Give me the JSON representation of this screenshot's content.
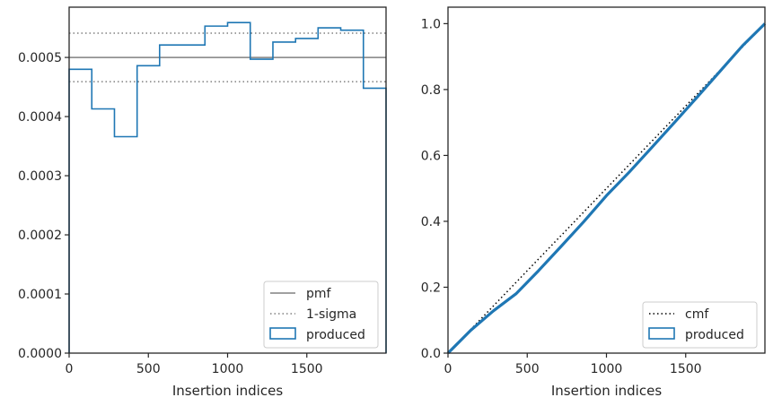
{
  "colors": {
    "produced": "#1f77b4",
    "pmf": "#808080",
    "sigma": "#808080",
    "cmf": "#000000",
    "axes": "#262626",
    "legend_border": "#cccccc"
  },
  "chart_data": [
    {
      "type": "step",
      "xlabel": "Insertion indices",
      "ylabel": "",
      "xlim": [
        0,
        2000
      ],
      "ylim": [
        0,
        0.000585
      ],
      "xticks": [
        0,
        500,
        1000,
        1500
      ],
      "xtick_labels": [
        "0",
        "500",
        "1000",
        "1500"
      ],
      "yticks": [
        0,
        0.0001,
        0.0002,
        0.0003,
        0.0004,
        0.0005
      ],
      "ytick_labels": [
        "0.0000",
        "0.0001",
        "0.0002",
        "0.0003",
        "0.0004",
        "0.0005"
      ],
      "legend_placement": "lower-right",
      "pmf": {
        "label": "pmf",
        "value": 0.0005
      },
      "sigma": {
        "label": "1-sigma",
        "upper": 0.000541,
        "lower": 0.000459
      },
      "produced": {
        "label": "produced",
        "bin_edges": [
          0,
          143,
          286,
          429,
          571,
          714,
          857,
          1000,
          1143,
          1286,
          1429,
          1571,
          1714,
          1857,
          2000
        ],
        "values": [
          0.00048,
          0.000413,
          0.000366,
          0.000486,
          0.000521,
          0.000521,
          0.000553,
          0.000559,
          0.000497,
          0.000526,
          0.000532,
          0.00055,
          0.000546,
          0.000448
        ]
      }
    },
    {
      "type": "line",
      "xlabel": "Insertion indices",
      "ylabel": "",
      "xlim": [
        0,
        2000
      ],
      "ylim": [
        0,
        1.05
      ],
      "xticks": [
        0,
        500,
        1000,
        1500
      ],
      "xtick_labels": [
        "0",
        "500",
        "1000",
        "1500"
      ],
      "yticks": [
        0,
        0.2,
        0.4,
        0.6,
        0.8,
        1.0
      ],
      "ytick_labels": [
        "0.0",
        "0.2",
        "0.4",
        "0.6",
        "0.8",
        "1.0"
      ],
      "legend_placement": "lower-right",
      "cmf": {
        "label": "cmf",
        "x": [
          0,
          2000
        ],
        "y": [
          0,
          1.0
        ]
      },
      "produced": {
        "label": "produced",
        "x": [
          0,
          143,
          286,
          429,
          571,
          714,
          857,
          1000,
          1143,
          1286,
          1429,
          1571,
          1714,
          1857,
          2000
        ],
        "y": [
          0,
          0.069,
          0.128,
          0.18,
          0.25,
          0.324,
          0.399,
          0.478,
          0.549,
          0.624,
          0.7,
          0.776,
          0.854,
          0.932,
          1.0
        ]
      }
    }
  ]
}
